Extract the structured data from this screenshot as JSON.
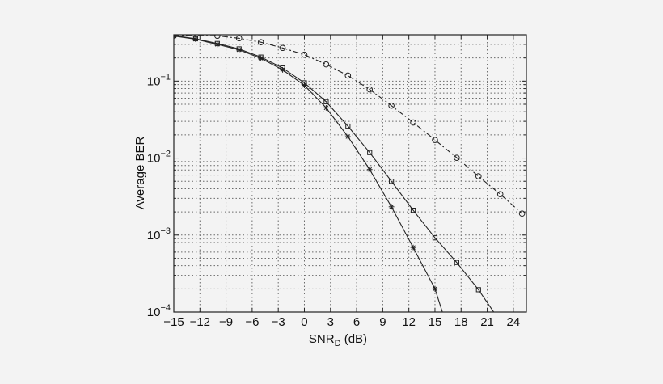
{
  "chart_data": {
    "type": "line",
    "title": "",
    "xlabel": "SNR",
    "xlabel_sub": "D",
    "xlabel_unit": " (dB)",
    "ylabel": "Average BER",
    "y_scale": "log",
    "xlim": [
      -15,
      25.5
    ],
    "ylim": [
      0.0001,
      0.4
    ],
    "grid": true,
    "grid_style": "dotted",
    "x_ticks": [
      -15,
      -12,
      -9,
      -6,
      -3,
      0,
      3,
      6,
      9,
      12,
      15,
      18,
      21,
      24
    ],
    "x_tick_labels": [
      "−15",
      "−12",
      "−9",
      "−6",
      "−3",
      "0",
      "3",
      "6",
      "9",
      "12",
      "15",
      "18",
      "21",
      "24"
    ],
    "y_ticks": [
      0.0001,
      0.001,
      0.01,
      0.1
    ],
    "y_tick_labels": [
      {
        "base": "10",
        "exp": "−4"
      },
      {
        "base": "10",
        "exp": "−3"
      },
      {
        "base": "10",
        "exp": "−2"
      },
      {
        "base": "10",
        "exp": "−1"
      }
    ],
    "colors": {
      "line": "#222222",
      "grid": "#6a6a6a",
      "background": "#f3f3f3"
    },
    "series": [
      {
        "marker": "circle",
        "line_style": "dashdot",
        "x": [
          -15,
          -10,
          -7.5,
          -5,
          -2.5,
          0,
          2.5,
          5,
          7.5,
          10,
          12.5,
          15,
          17.5,
          20,
          22.5,
          25
        ],
        "y": [
          0.39,
          0.388,
          0.36,
          0.32,
          0.27,
          0.22,
          0.165,
          0.118,
          0.078,
          0.048,
          0.029,
          0.0172,
          0.0101,
          0.0058,
          0.0034,
          0.0019
        ]
      },
      {
        "marker": "square",
        "line_style": "solid",
        "x": [
          -15,
          -12.5,
          -10,
          -7.5,
          -5,
          -2.5,
          0,
          2.5,
          5,
          7.5,
          10,
          12.5,
          15,
          17.5,
          20,
          22.5
        ],
        "y": [
          0.39,
          0.355,
          0.308,
          0.262,
          0.205,
          0.148,
          0.095,
          0.054,
          0.026,
          0.0118,
          0.005,
          0.0021,
          0.00092,
          0.00044,
          0.000195,
          7.5e-05
        ]
      },
      {
        "marker": "star",
        "line_style": "solid",
        "x": [
          -15,
          -12.5,
          -10,
          -7.5,
          -5,
          -2.5,
          0,
          2.5,
          5,
          7.5,
          10,
          12.5,
          15,
          16.2
        ],
        "y": [
          0.385,
          0.35,
          0.3,
          0.255,
          0.198,
          0.14,
          0.088,
          0.045,
          0.019,
          0.0071,
          0.00233,
          0.00069,
          0.0002,
          7.5e-05
        ]
      }
    ]
  }
}
